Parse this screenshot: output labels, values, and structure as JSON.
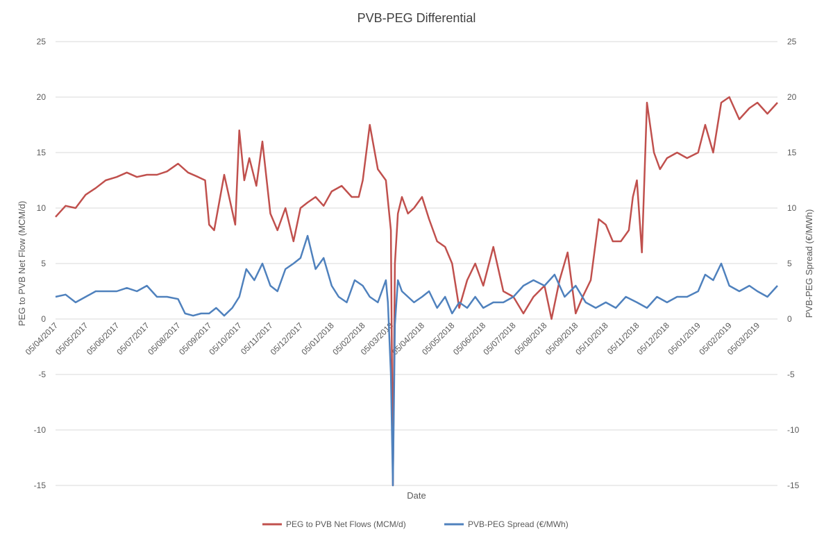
{
  "chart_data": {
    "type": "line",
    "title": "PVB-PEG Differential",
    "xlabel": "Date",
    "ylabel_left": "PEG to PVB Net Flow (MCM/d)",
    "ylabel_right": "PVB-PEG Spread (€/MWh)",
    "ylim_left": [
      -15,
      25
    ],
    "ylim_right": [
      -15,
      25
    ],
    "y_ticks": [
      -15,
      -10,
      -5,
      0,
      5,
      10,
      15,
      20,
      25
    ],
    "y_tick_labels": [
      "-15",
      "-10",
      "-5",
      "0",
      "5",
      "10",
      "15",
      "20",
      "25"
    ],
    "x_range": [
      "2017-04-05",
      "2019-03-25"
    ],
    "x_tick_dates": [
      "2017-04-05",
      "2017-05-05",
      "2017-06-05",
      "2017-07-05",
      "2017-08-05",
      "2017-09-05",
      "2017-10-05",
      "2017-11-05",
      "2017-12-05",
      "2018-01-05",
      "2018-02-05",
      "2018-03-05",
      "2018-04-05",
      "2018-05-05",
      "2018-06-05",
      "2018-07-05",
      "2018-08-05",
      "2018-09-05",
      "2018-10-05",
      "2018-11-05",
      "2018-12-05",
      "2019-01-05",
      "2019-02-05",
      "2019-03-05"
    ],
    "x_tick_labels": [
      "05/04/2017",
      "05/05/2017",
      "05/06/2017",
      "05/07/2017",
      "05/08/2017",
      "05/09/2017",
      "05/10/2017",
      "05/11/2017",
      "05/12/2017",
      "05/01/2018",
      "05/02/2018",
      "05/03/2018",
      "05/04/2018",
      "05/05/2018",
      "05/06/2018",
      "05/07/2018",
      "05/08/2018",
      "05/09/2018",
      "05/10/2018",
      "05/11/2018",
      "05/12/2018",
      "05/01/2019",
      "05/02/2019",
      "05/03/2019"
    ],
    "grid": true,
    "legend_position": "bottom",
    "series": [
      {
        "name": "PEG to PVB Net Flows (MCM/d)",
        "color": "#c0504d",
        "axis": "left",
        "x": [
          "2017-04-05",
          "2017-04-15",
          "2017-04-25",
          "2017-05-05",
          "2017-05-15",
          "2017-05-25",
          "2017-06-05",
          "2017-06-15",
          "2017-06-25",
          "2017-07-05",
          "2017-07-15",
          "2017-07-25",
          "2017-08-05",
          "2017-08-15",
          "2017-08-25",
          "2017-09-01",
          "2017-09-05",
          "2017-09-10",
          "2017-09-20",
          "2017-10-01",
          "2017-10-05",
          "2017-10-10",
          "2017-10-15",
          "2017-10-22",
          "2017-10-28",
          "2017-11-05",
          "2017-11-12",
          "2017-11-20",
          "2017-11-28",
          "2017-12-05",
          "2017-12-12",
          "2017-12-20",
          "2017-12-28",
          "2018-01-05",
          "2018-01-15",
          "2018-01-25",
          "2018-02-01",
          "2018-02-05",
          "2018-02-12",
          "2018-02-20",
          "2018-02-28",
          "2018-03-05",
          "2018-03-07",
          "2018-03-09",
          "2018-03-12",
          "2018-03-16",
          "2018-03-22",
          "2018-03-28",
          "2018-04-05",
          "2018-04-12",
          "2018-04-20",
          "2018-04-28",
          "2018-05-05",
          "2018-05-12",
          "2018-05-20",
          "2018-05-28",
          "2018-06-05",
          "2018-06-15",
          "2018-06-25",
          "2018-07-05",
          "2018-07-15",
          "2018-07-25",
          "2018-08-05",
          "2018-08-12",
          "2018-08-20",
          "2018-08-28",
          "2018-09-05",
          "2018-09-12",
          "2018-09-20",
          "2018-09-28",
          "2018-10-05",
          "2018-10-12",
          "2018-10-20",
          "2018-10-28",
          "2018-11-01",
          "2018-11-05",
          "2018-11-10",
          "2018-11-15",
          "2018-11-22",
          "2018-11-28",
          "2018-12-05",
          "2018-12-15",
          "2018-12-25",
          "2019-01-05",
          "2019-01-12",
          "2019-01-20",
          "2019-01-28",
          "2019-02-05",
          "2019-02-15",
          "2019-02-25",
          "2019-03-05",
          "2019-03-15",
          "2019-03-25"
        ],
        "y": [
          9.2,
          10.2,
          10.0,
          11.2,
          11.8,
          12.5,
          12.8,
          13.2,
          12.8,
          13.0,
          13.0,
          13.3,
          14.0,
          13.2,
          12.8,
          12.5,
          8.5,
          8.0,
          13.0,
          8.5,
          17.0,
          12.5,
          14.5,
          12.0,
          16.0,
          9.5,
          8.0,
          10.0,
          7.0,
          10.0,
          10.5,
          11.0,
          10.2,
          11.5,
          12.0,
          11.0,
          11.0,
          12.5,
          17.5,
          13.5,
          12.5,
          8.0,
          -15.0,
          5.0,
          9.5,
          11.0,
          9.5,
          10.0,
          11.0,
          9.0,
          7.0,
          6.5,
          5.0,
          1.0,
          3.5,
          5.0,
          3.0,
          6.5,
          2.5,
          2.0,
          0.5,
          2.0,
          3.0,
          0.0,
          3.5,
          6.0,
          0.5,
          2.0,
          3.5,
          9.0,
          8.5,
          7.0,
          7.0,
          8.0,
          11.0,
          12.5,
          6.0,
          19.5,
          15.0,
          13.5,
          14.5,
          15.0,
          14.5,
          15.0,
          17.5,
          15.0,
          19.5,
          20.0,
          18.0,
          19.0,
          19.5,
          18.5,
          19.5
        ]
      },
      {
        "name": "PVB-PEG Spread (€/MWh)",
        "color": "#4f81bd",
        "axis": "right",
        "x": [
          "2017-04-05",
          "2017-04-15",
          "2017-04-25",
          "2017-05-05",
          "2017-05-15",
          "2017-05-25",
          "2017-06-05",
          "2017-06-15",
          "2017-06-25",
          "2017-07-05",
          "2017-07-15",
          "2017-07-25",
          "2017-08-05",
          "2017-08-12",
          "2017-08-20",
          "2017-08-28",
          "2017-09-05",
          "2017-09-12",
          "2017-09-20",
          "2017-09-28",
          "2017-10-05",
          "2017-10-12",
          "2017-10-20",
          "2017-10-28",
          "2017-11-05",
          "2017-11-12",
          "2017-11-20",
          "2017-11-28",
          "2017-12-05",
          "2017-12-12",
          "2017-12-20",
          "2017-12-28",
          "2018-01-05",
          "2018-01-12",
          "2018-01-20",
          "2018-01-28",
          "2018-02-05",
          "2018-02-12",
          "2018-02-20",
          "2018-02-28",
          "2018-03-02",
          "2018-03-05",
          "2018-03-07",
          "2018-03-09",
          "2018-03-12",
          "2018-03-16",
          "2018-03-22",
          "2018-03-28",
          "2018-04-05",
          "2018-04-12",
          "2018-04-20",
          "2018-04-28",
          "2018-05-05",
          "2018-05-12",
          "2018-05-20",
          "2018-05-28",
          "2018-06-05",
          "2018-06-15",
          "2018-06-25",
          "2018-07-05",
          "2018-07-15",
          "2018-07-25",
          "2018-08-05",
          "2018-08-15",
          "2018-08-25",
          "2018-09-05",
          "2018-09-15",
          "2018-09-25",
          "2018-10-05",
          "2018-10-15",
          "2018-10-25",
          "2018-11-05",
          "2018-11-15",
          "2018-11-25",
          "2018-12-05",
          "2018-12-15",
          "2018-12-25",
          "2019-01-05",
          "2019-01-12",
          "2019-01-20",
          "2019-01-28",
          "2019-02-05",
          "2019-02-15",
          "2019-02-25",
          "2019-03-05",
          "2019-03-15",
          "2019-03-25"
        ],
        "y": [
          2.0,
          2.2,
          1.5,
          2.0,
          2.5,
          2.5,
          2.5,
          2.8,
          2.5,
          3.0,
          2.0,
          2.0,
          1.8,
          0.5,
          0.3,
          0.5,
          0.5,
          1.0,
          0.3,
          1.0,
          2.0,
          4.5,
          3.5,
          5.0,
          3.0,
          2.5,
          4.5,
          5.0,
          5.5,
          7.5,
          4.5,
          5.5,
          3.0,
          2.0,
          1.5,
          3.5,
          3.0,
          2.0,
          1.5,
          3.5,
          1.5,
          -5.0,
          -15.0,
          -0.5,
          3.5,
          2.5,
          2.0,
          1.5,
          2.0,
          2.5,
          1.0,
          2.0,
          0.5,
          1.5,
          1.0,
          2.0,
          1.0,
          1.5,
          1.5,
          2.0,
          3.0,
          3.5,
          3.0,
          4.0,
          2.0,
          3.0,
          1.5,
          1.0,
          1.5,
          1.0,
          2.0,
          1.5,
          1.0,
          2.0,
          1.5,
          2.0,
          2.0,
          2.5,
          4.0,
          3.5,
          5.0,
          3.0,
          2.5,
          3.0,
          2.5,
          2.0,
          3.0
        ]
      }
    ]
  }
}
